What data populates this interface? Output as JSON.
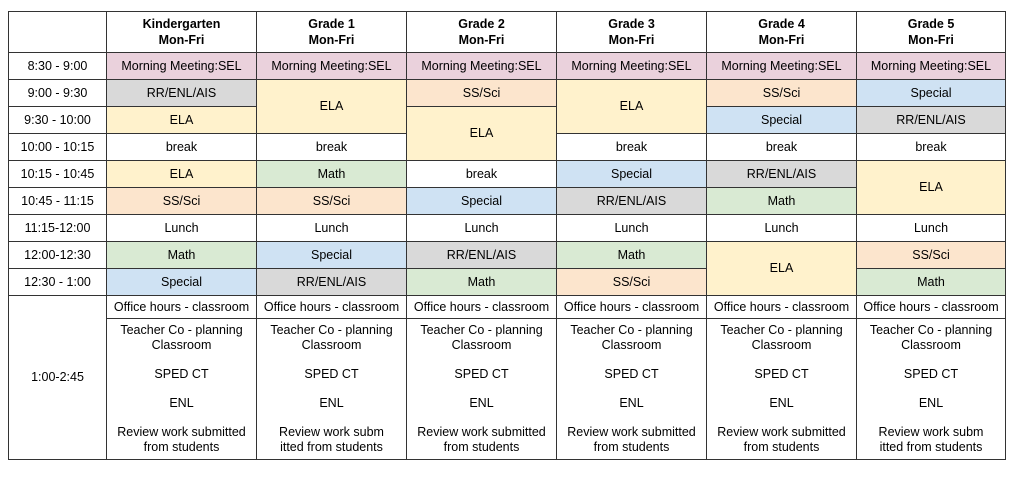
{
  "header": {
    "corner": "",
    "grades": [
      {
        "name": "Kindergarten",
        "days": "Mon-Fri"
      },
      {
        "name": "Grade 1",
        "days": "Mon-Fri"
      },
      {
        "name": "Grade 2",
        "days": "Mon-Fri"
      },
      {
        "name": "Grade 3",
        "days": "Mon-Fri"
      },
      {
        "name": "Grade 4",
        "days": "Mon-Fri"
      },
      {
        "name": "Grade 5",
        "days": "Mon-Fri"
      }
    ]
  },
  "times": [
    "8:30 - 9:00",
    "9:00 - 9:30",
    "9:30 - 10:00",
    "10:00 - 10:15",
    "10:15 - 10:45",
    "10:45 - 11:15",
    "11:15-12:00",
    "12:00-12:30",
    "12:30 - 1:00",
    "1:00-2:45"
  ],
  "colors": {
    "pink": "#ead1dc",
    "gray": "#d9d9d9",
    "yellow": "#fff2cc",
    "orange": "#fce5cd",
    "green": "#d9ead3",
    "blue": "#cfe2f3",
    "white": "#ffffff"
  },
  "schedule": {
    "morning": "Morning Meeting:SEL",
    "k": [
      "RR/ENL/AIS",
      "ELA",
      "break",
      "ELA",
      "SS/Sci",
      "Lunch",
      "Math",
      "Special"
    ],
    "g1": [
      "ELA",
      "break",
      "Math",
      "SS/Sci",
      "Lunch",
      "Special",
      "RR/ENL/AIS"
    ],
    "g2": [
      "SS/Sci",
      "ELA",
      "break",
      "Special",
      "Lunch",
      "RR/ENL/AIS",
      "Math"
    ],
    "g3": [
      "ELA",
      "break",
      "Special",
      "RR/ENL/AIS",
      "Lunch",
      "Math",
      "SS/Sci"
    ],
    "g4": [
      "SS/Sci",
      "Special",
      "break",
      "RR/ENL/AIS",
      "Math",
      "Lunch",
      "ELA"
    ],
    "g5": [
      "Special",
      "RR/ENL/AIS",
      "break",
      "ELA",
      "Lunch",
      "SS/Sci",
      "Math"
    ]
  },
  "afternoon": {
    "office": "Office hours - classroom",
    "planning_1": "Teacher Co - planning",
    "planning_2": "Classroom",
    "sped": "SPED CT",
    "enl": "ENL",
    "review_a1": "Review work submitted",
    "review_a2": "from students",
    "review_b1": "Review work subm",
    "review_b2": "itted from students"
  }
}
